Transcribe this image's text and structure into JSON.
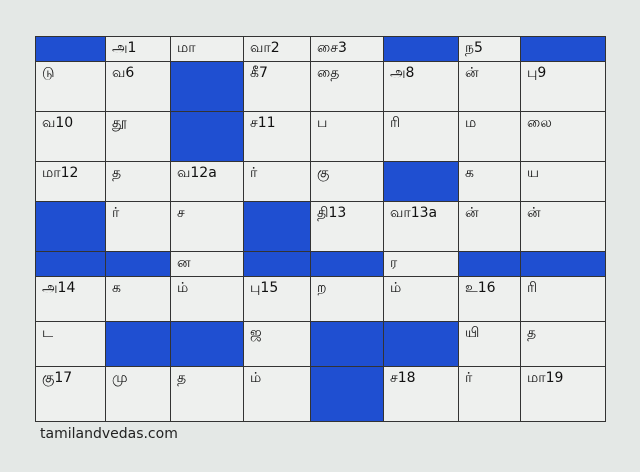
{
  "colors": {
    "blocked": "#1f4fd1",
    "cell": "#eef0ee"
  },
  "grid": [
    [
      null,
      "அ1",
      "மா",
      "வா2",
      "சை3",
      null,
      "ந5",
      null
    ],
    [
      "டு",
      "வ6",
      null,
      "கீ7",
      "தை",
      "அ8",
      "ன்",
      "பு9"
    ],
    [
      "வ10",
      "தூ",
      null,
      "ச11",
      "ப",
      "ரி",
      "ம",
      "லை"
    ],
    [
      "மா12",
      "த",
      "வ12a",
      "ர்",
      "கு",
      null,
      "க",
      "ய"
    ],
    [
      null,
      "ர்",
      "ச",
      null,
      "தி13",
      "வா13a",
      "ன்",
      "ன்"
    ],
    [
      null,
      null,
      "ன",
      null,
      null,
      "ர",
      null,
      null
    ],
    [
      "அ14",
      "க",
      "ம்",
      "பு15",
      "ற",
      "ம்",
      "உ16",
      "ரி"
    ],
    [
      "ட",
      null,
      null,
      "ஜ",
      null,
      null,
      "யி",
      "த"
    ],
    [
      "கு17",
      "மு",
      "த",
      "ம்",
      null,
      "ச18",
      "ர்",
      "மா19"
    ]
  ],
  "footer": "tamilandvedas.com"
}
